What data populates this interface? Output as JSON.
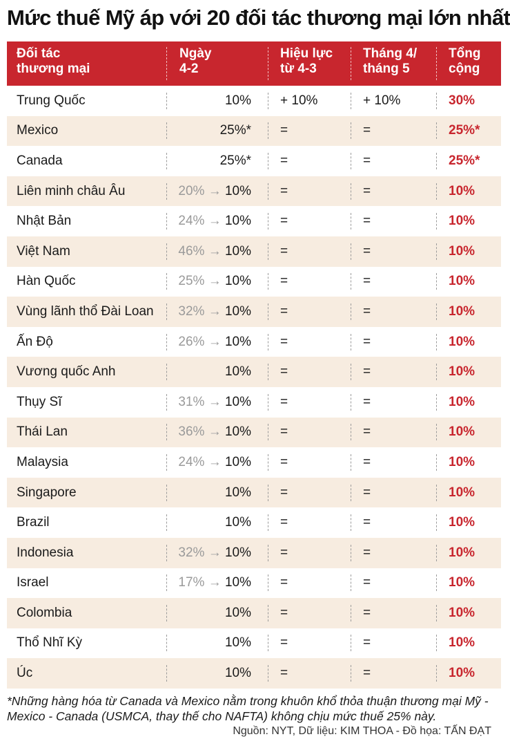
{
  "title": "Mức thuế Mỹ áp với 20 đối tác thương mại lớn nhất",
  "colors": {
    "header_bg": "#c8262e",
    "stripe": "#f7ece0",
    "total_text": "#c8262e"
  },
  "chart_data": {
    "type": "table",
    "headers": [
      [
        "Đối tác",
        "thương mại"
      ],
      [
        "Ngày",
        "4-2"
      ],
      [
        "Hiệu lực",
        "từ 4-3"
      ],
      [
        "Tháng 4/",
        "tháng 5"
      ],
      [
        "Tổng",
        "cộng"
      ]
    ],
    "rows": [
      {
        "partner": "Trung Quốc",
        "old": "",
        "feb": "10%",
        "mar": "+ 10%",
        "apr": "+ 10%",
        "total": "30%"
      },
      {
        "partner": "Mexico",
        "old": "",
        "feb": "25%*",
        "mar": "=",
        "apr": "=",
        "total": "25%*"
      },
      {
        "partner": "Canada",
        "old": "",
        "feb": "25%*",
        "mar": "=",
        "apr": "=",
        "total": "25%*"
      },
      {
        "partner": "Liên minh châu Âu",
        "old": "20%",
        "feb": "10%",
        "mar": "=",
        "apr": "=",
        "total": "10%"
      },
      {
        "partner": "Nhật Bản",
        "old": "24%",
        "feb": "10%",
        "mar": "=",
        "apr": "=",
        "total": "10%"
      },
      {
        "partner": "Việt Nam",
        "old": "46%",
        "feb": "10%",
        "mar": "=",
        "apr": "=",
        "total": "10%"
      },
      {
        "partner": "Hàn Quốc",
        "old": "25%",
        "feb": "10%",
        "mar": "=",
        "apr": "=",
        "total": "10%"
      },
      {
        "partner": "Vùng lãnh thổ Đài Loan",
        "old": "32%",
        "feb": "10%",
        "mar": "=",
        "apr": "=",
        "total": "10%"
      },
      {
        "partner": "Ấn Độ",
        "old": "26%",
        "feb": "10%",
        "mar": "=",
        "apr": "=",
        "total": "10%"
      },
      {
        "partner": "Vương quốc Anh",
        "old": "",
        "feb": "10%",
        "mar": "=",
        "apr": "=",
        "total": "10%"
      },
      {
        "partner": "Thụy Sĩ",
        "old": "31%",
        "feb": "10%",
        "mar": "=",
        "apr": "=",
        "total": "10%"
      },
      {
        "partner": "Thái Lan",
        "old": "36%",
        "feb": "10%",
        "mar": "=",
        "apr": "=",
        "total": "10%"
      },
      {
        "partner": "Malaysia",
        "old": "24%",
        "feb": "10%",
        "mar": "=",
        "apr": "=",
        "total": "10%"
      },
      {
        "partner": "Singapore",
        "old": "",
        "feb": "10%",
        "mar": "=",
        "apr": "=",
        "total": "10%"
      },
      {
        "partner": "Brazil",
        "old": "",
        "feb": "10%",
        "mar": "=",
        "apr": "=",
        "total": "10%"
      },
      {
        "partner": "Indonesia",
        "old": "32%",
        "feb": "10%",
        "mar": "=",
        "apr": "=",
        "total": "10%"
      },
      {
        "partner": "Israel",
        "old": "17%",
        "feb": "10%",
        "mar": "=",
        "apr": "=",
        "total": "10%"
      },
      {
        "partner": "Colombia",
        "old": "",
        "feb": "10%",
        "mar": "=",
        "apr": "=",
        "total": "10%"
      },
      {
        "partner": "Thổ Nhĩ Kỳ",
        "old": "",
        "feb": "10%",
        "mar": "=",
        "apr": "=",
        "total": "10%"
      },
      {
        "partner": "Úc",
        "old": "",
        "feb": "10%",
        "mar": "=",
        "apr": "=",
        "total": "10%"
      }
    ]
  },
  "footnote": "*Những hàng hóa từ Canada và Mexico nằm trong khuôn khổ thỏa thuận thương mại Mỹ - Mexico - Canada (USMCA, thay thế cho NAFTA) không chịu mức thuế 25% này.",
  "source": "Nguồn: NYT, Dữ liệu: KIM THOA - Đồ họa: TẤN ĐẠT"
}
